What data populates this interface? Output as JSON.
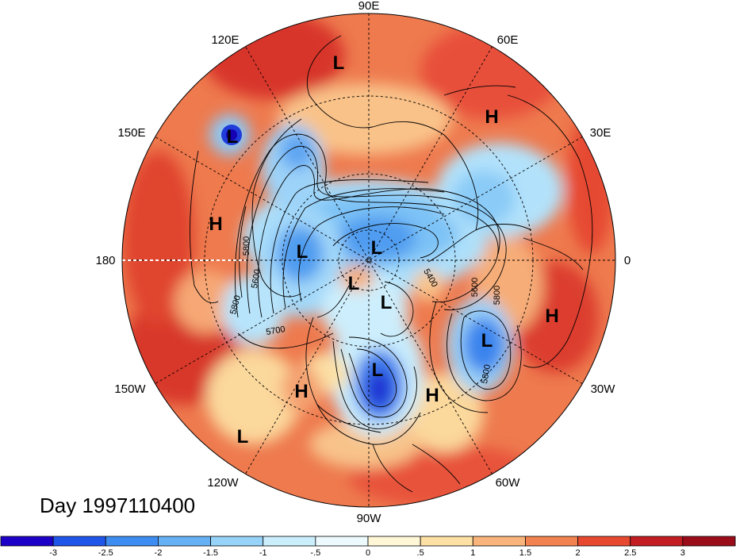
{
  "map": {
    "projection": "north-polar-stereographic",
    "date_label": "Day 1997110400",
    "longitude_labels": [
      "90E",
      "60E",
      "30E",
      "0",
      "30W",
      "60W",
      "90W",
      "120W",
      "150W",
      "180",
      "150E",
      "120E"
    ],
    "field_range": [
      -3.5,
      3.5
    ],
    "contour_labels": [
      "5800",
      "5600",
      "5800",
      "5700",
      "5400",
      "5600",
      "5800",
      "5800"
    ],
    "systems": [
      {
        "type": "L",
        "name": "siberia-low"
      },
      {
        "type": "H",
        "name": "urals-high"
      },
      {
        "type": "L",
        "name": "kamchatka-low"
      },
      {
        "type": "H",
        "name": "pacific-high"
      },
      {
        "type": "L",
        "name": "bering-low"
      },
      {
        "type": "L",
        "name": "arctic-low"
      },
      {
        "type": "L",
        "name": "baffin-low"
      },
      {
        "type": "L",
        "name": "greenland-low"
      },
      {
        "type": "H",
        "name": "europe-high"
      },
      {
        "type": "L",
        "name": "atlantic-low"
      },
      {
        "type": "L",
        "name": "great-lakes-low"
      },
      {
        "type": "H",
        "name": "west-us-high"
      },
      {
        "type": "H",
        "name": "caribbean-high"
      },
      {
        "type": "L",
        "name": "east-pacific-low"
      }
    ]
  },
  "colorbar": {
    "ticks": [
      "-3",
      "-2.5",
      "-2",
      "-1.5",
      "-1",
      "-.5",
      "0",
      ".5",
      "1",
      "1.5",
      "2",
      "2.5",
      "3"
    ],
    "colors": [
      "#1d00c8",
      "#1f55e8",
      "#3d8cf2",
      "#66b1f5",
      "#97d3f8",
      "#cbeefc",
      "#ecfafe",
      "#fff7d6",
      "#fde0a3",
      "#f8b47a",
      "#f2824f",
      "#e6492f",
      "#c21d22",
      "#9b0c19"
    ]
  }
}
